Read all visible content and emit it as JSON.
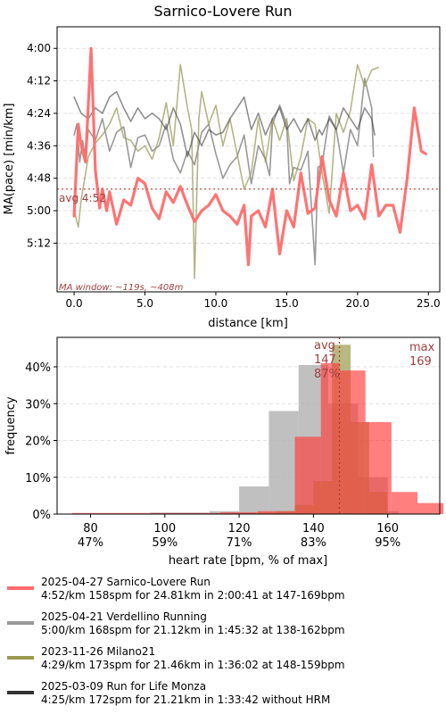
{
  "chart_data": [
    {
      "type": "line",
      "title": "Sarnico-Lovere Run",
      "xlabel": "distance [km]",
      "ylabel": "MA(pace) [min/km]",
      "xlim": [
        -1.2,
        25.8
      ],
      "ylim": [
        330,
        232
      ],
      "y_inverted": true,
      "x_ticks": [
        0,
        5,
        10,
        15,
        20,
        25
      ],
      "x_tick_labels": [
        "0.0",
        "5.0",
        "10.0",
        "15.0",
        "20.0",
        "25.0"
      ],
      "y_ticks": [
        240,
        252,
        264,
        276,
        288,
        300,
        312
      ],
      "y_tick_labels": [
        "4:00",
        "4:12",
        "4:24",
        "4:36",
        "4:48",
        "5:00",
        "5:12"
      ],
      "grid": true,
      "avg_line": {
        "value": 292,
        "label": "avg 4:52",
        "color": "#cd5c5c"
      },
      "annotation": "MA window: ~119s, ~408m",
      "series": [
        {
          "name": "2025-04-21 Verdellino Running",
          "color": "#999999",
          "width": 1.6,
          "x": [
            0,
            0.2,
            0.4,
            0.6,
            0.8,
            1.0,
            1.5,
            2.0,
            2.5,
            3.0,
            3.5,
            4.0,
            4.5,
            5.0,
            5.5,
            6.0,
            6.5,
            7.0,
            7.5,
            8.0,
            8.5,
            9.0,
            9.5,
            10.0,
            10.5,
            11.0,
            11.5,
            12.0,
            12.5,
            13.0,
            13.5,
            13.8,
            14.0,
            14.5,
            15.0,
            15.2,
            15.5,
            16.0,
            16.5,
            17.0,
            17.2,
            17.5,
            18.0,
            18.5,
            19.0,
            19.5,
            20.0,
            20.5,
            21.0,
            21.12
          ],
          "y": [
            272,
            268,
            282,
            274,
            281,
            270,
            274,
            266,
            278,
            271,
            269,
            284,
            273,
            272,
            278,
            276,
            268,
            281,
            286,
            278,
            283,
            271,
            268,
            279,
            288,
            283,
            280,
            272,
            290,
            276,
            281,
            287,
            268,
            261,
            268,
            290,
            284,
            285,
            278,
            320,
            284,
            283,
            265,
            270,
            286,
            270,
            276,
            251,
            262,
            280
          ]
        },
        {
          "name": "2023-11-26 Milano21",
          "color": "#9c9c5e",
          "width": 1.6,
          "opacity": 0.75,
          "x": [
            0,
            0.3,
            0.5,
            1.0,
            1.5,
            2.0,
            2.5,
            3.0,
            3.5,
            4.0,
            4.5,
            5.0,
            5.5,
            6.0,
            6.5,
            7.0,
            7.5,
            8.0,
            8.3,
            8.5,
            8.8,
            9.0,
            9.5,
            10.0,
            10.5,
            11.0,
            11.5,
            12.0,
            12.5,
            13.0,
            13.5,
            14.0,
            14.5,
            15.0,
            15.5,
            16.0,
            16.5,
            17.0,
            17.5,
            18.0,
            18.5,
            19.0,
            19.5,
            20.0,
            20.5,
            21.0,
            21.46
          ],
          "y": [
            300,
            306,
            296,
            280,
            275,
            272,
            268,
            262,
            273,
            274,
            278,
            276,
            281,
            273,
            260,
            276,
            246,
            262,
            270,
            325,
            266,
            256,
            268,
            261,
            276,
            266,
            279,
            292,
            286,
            266,
            282,
            266,
            274,
            266,
            289,
            280,
            266,
            268,
            286,
            301,
            264,
            271,
            263,
            246,
            254,
            248,
            247
          ]
        },
        {
          "name": "2025-03-09 Run for Life Monza",
          "color": "#333333",
          "width": 1.6,
          "opacity": 0.55,
          "x": [
            0,
            0.5,
            1.0,
            1.5,
            2.0,
            2.5,
            3.0,
            3.5,
            4.0,
            4.5,
            5.0,
            5.5,
            6.0,
            6.5,
            7.0,
            7.5,
            8.0,
            8.5,
            9.0,
            9.5,
            10.0,
            10.5,
            11.0,
            11.5,
            12.0,
            12.5,
            13.0,
            13.5,
            14.0,
            14.5,
            15.0,
            15.5,
            16.0,
            16.5,
            17.0,
            17.3,
            17.5,
            18.0,
            18.5,
            19.0,
            19.5,
            20.0,
            20.5,
            21.0,
            21.21
          ],
          "y": [
            258,
            264,
            266,
            262,
            264,
            258,
            256,
            262,
            267,
            262,
            266,
            264,
            266,
            270,
            262,
            268,
            280,
            271,
            276,
            270,
            272,
            271,
            266,
            262,
            258,
            270,
            264,
            272,
            266,
            262,
            270,
            266,
            271,
            266,
            274,
            270,
            272,
            266,
            270,
            262,
            266,
            270,
            262,
            266,
            272
          ]
        },
        {
          "name": "2025-04-27 Sarnico-Lovere Run",
          "color": "#ff6b6b",
          "width": 3.2,
          "opacity": 0.95,
          "x": [
            0,
            0.3,
            0.5,
            0.8,
            1.0,
            1.2,
            1.5,
            1.8,
            2.0,
            2.3,
            2.5,
            3.0,
            3.5,
            4.0,
            4.5,
            5.0,
            5.5,
            6.0,
            6.5,
            7.0,
            7.5,
            8.0,
            8.5,
            9.0,
            9.5,
            10.0,
            10.5,
            11.0,
            11.5,
            12.0,
            12.3,
            12.5,
            13.0,
            13.5,
            14.0,
            14.5,
            15.0,
            15.5,
            16.0,
            16.5,
            17.0,
            17.5,
            18.0,
            18.5,
            19.0,
            19.5,
            20.0,
            20.5,
            21.0,
            21.5,
            22.0,
            22.5,
            23.0,
            23.5,
            24.0,
            24.5,
            24.81
          ],
          "y": [
            302,
            268,
            276,
            282,
            261,
            240,
            285,
            299,
            292,
            300,
            293,
            305,
            296,
            298,
            288,
            290,
            299,
            303,
            293,
            297,
            291,
            298,
            304,
            300,
            298,
            294,
            300,
            302,
            305,
            298,
            320,
            302,
            300,
            306,
            292,
            316,
            300,
            306,
            286,
            301,
            299,
            280,
            296,
            302,
            286,
            300,
            298,
            303,
            283,
            302,
            298,
            298,
            308,
            288,
            262,
            278,
            279
          ]
        }
      ]
    },
    {
      "type": "bar",
      "subtype": "overlapping-histogram",
      "xlabel": "heart rate [bpm, % of max]",
      "ylabel": "frequency",
      "xlim": [
        71,
        174
      ],
      "ylim": [
        0,
        48
      ],
      "x_ticks": [
        80,
        100,
        120,
        140,
        160
      ],
      "x_tick_labels": [
        "80",
        "100",
        "120",
        "140",
        "160"
      ],
      "x_tick_sublabels": [
        "47%",
        "59%",
        "71%",
        "83%",
        "95%"
      ],
      "y_ticks": [
        0,
        10,
        20,
        30,
        40
      ],
      "y_tick_labels": [
        "0%",
        "10%",
        "20%",
        "30%",
        "40%"
      ],
      "grid": true,
      "avg_marker": {
        "value": 147,
        "label_lines": [
          "avg",
          "147",
          "87%"
        ],
        "color": "#b03a3a"
      },
      "max_marker": {
        "value": 169,
        "label_lines": [
          "max",
          "169"
        ],
        "color": "#b03a3a"
      },
      "series": [
        {
          "name": "2025-04-21 Verdellino Running",
          "color": "#b5b5b5",
          "opacity": 0.85,
          "bins": [
            [
              96,
              112
            ],
            [
              112,
              120
            ],
            [
              120,
              128
            ],
            [
              128,
              136
            ],
            [
              136,
              144
            ],
            [
              144,
              152
            ],
            [
              152,
              160
            ],
            [
              160,
              163
            ]
          ],
          "values": [
            0.4,
            0.8,
            7.5,
            28,
            40.5,
            30,
            10,
            0.8
          ]
        },
        {
          "name": "2023-11-26 Milano21",
          "color": "#9a9a4e",
          "opacity": 0.7,
          "bins": [
            [
              125,
              130
            ],
            [
              130,
              135
            ],
            [
              135,
              140
            ],
            [
              140,
              145
            ],
            [
              145,
              150
            ],
            [
              150,
              155
            ],
            [
              155,
              160
            ]
          ],
          "values": [
            0.4,
            0.8,
            2.5,
            9,
            46,
            25,
            6
          ]
        },
        {
          "name": "2025-04-27 Sarnico-Lovere Run",
          "color": "#ff3b3b",
          "opacity": 0.65,
          "bins": [
            [
              75,
              85
            ],
            [
              85,
              95
            ],
            [
              95,
              105
            ],
            [
              105,
              115
            ],
            [
              115,
              125
            ],
            [
              125,
              135
            ],
            [
              135,
              142
            ],
            [
              142,
              147
            ],
            [
              147,
              154
            ],
            [
              154,
              161
            ],
            [
              161,
              168
            ],
            [
              168,
              175
            ]
          ],
          "values": [
            0.3,
            0.3,
            0.3,
            0.3,
            0.5,
            0.8,
            21,
            41,
            39,
            25,
            6,
            3
          ]
        }
      ]
    }
  ],
  "legend": {
    "items": [
      {
        "line1": "2025-04-27 Sarnico-Lovere Run",
        "line2": "4:52/km 158spm for 24.81km in 2:00:41 at 147-169bpm",
        "color": "#ff6b6b"
      },
      {
        "line1": "2025-04-21 Verdellino Running",
        "line2": "5:00/km 168spm for 21.12km in 1:45:32 at 138-162bpm",
        "color": "#999999"
      },
      {
        "line1": "2023-11-26 Milano21",
        "line2": "4:29/km 173spm for 21.46km in 1:36:02 at 148-159bpm",
        "color": "#9a9a4e"
      },
      {
        "line1": "2025-03-09 Run for Life Monza",
        "line2": "4:25/km 172spm for 21.21km in 1:33:42 without HRM",
        "color": "#333333"
      }
    ]
  }
}
